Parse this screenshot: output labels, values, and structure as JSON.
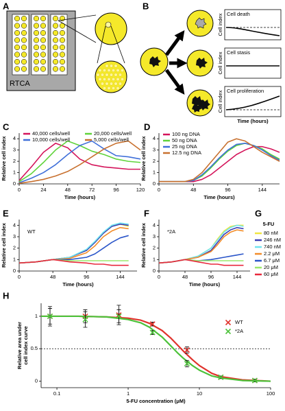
{
  "panel_labels": [
    "A",
    "B",
    "C",
    "D",
    "E",
    "F",
    "G",
    "H"
  ],
  "diagram": {
    "rtca_label": "RTCA",
    "outcomes": [
      {
        "label": "Cell death",
        "y_label": "Cell index"
      },
      {
        "label": "Cell stasis",
        "y_label": "Cell index"
      },
      {
        "label": "Cell proliferation",
        "y_label": "Cell index"
      }
    ],
    "x_label": "Time (hours)"
  },
  "chart_data": [
    {
      "type": "line",
      "xlabel": "Time (hours)",
      "ylabel": [
        "Relative cell index"
      ],
      "legend": "top",
      "x": [
        0,
        12,
        24,
        36,
        48,
        60,
        72,
        84,
        96,
        108,
        120
      ],
      "xlim": [
        0,
        120
      ],
      "xticks": [
        0,
        24,
        48,
        72,
        96,
        120
      ],
      "ylim": [
        0,
        4.5
      ],
      "yticks": [
        0,
        1,
        2,
        3,
        4
      ],
      "series": [
        {
          "name": "40,000 cells/well",
          "color": "#d4145a",
          "values": [
            0.3,
            1.5,
            2.8,
            3.6,
            3.2,
            2.2,
            1.7,
            1.5,
            1.4,
            1.3,
            1.3
          ]
        },
        {
          "name": "20,000 cells/well",
          "color": "#5fd33a",
          "values": [
            0.2,
            0.9,
            1.9,
            3.0,
            3.8,
            3.4,
            2.9,
            2.6,
            2.2,
            2.0,
            1.9
          ]
        },
        {
          "name": "10,000 cells/well",
          "color": "#3f6fd9",
          "values": [
            0.1,
            0.5,
            1.0,
            1.7,
            2.6,
            3.4,
            3.8,
            3.1,
            2.5,
            2.4,
            2.2
          ]
        },
        {
          "name": "5,000 cells/well",
          "color": "#c8702e",
          "values": [
            0.05,
            0.2,
            0.4,
            0.7,
            1.1,
            1.7,
            2.4,
            3.1,
            3.6,
            3.8,
            3.0
          ]
        }
      ]
    },
    {
      "type": "line",
      "xlabel": "Time (hours)",
      "ylabel": [
        "Relative cell index"
      ],
      "legend": "upper left",
      "x": [
        0,
        12,
        24,
        36,
        48,
        60,
        72,
        84,
        96,
        108,
        120,
        132,
        144,
        156,
        168
      ],
      "xlim": [
        0,
        168
      ],
      "xticks": [
        0,
        48,
        96,
        144
      ],
      "ylim": [
        0,
        4.5
      ],
      "yticks": [
        0,
        1,
        2,
        3,
        4
      ],
      "series": [
        {
          "name": "100 ng DNA",
          "color": "#d4145a",
          "values": [
            0.2,
            0.2,
            0.2,
            0.2,
            0.2,
            0.4,
            0.8,
            1.4,
            2.0,
            2.6,
            3.0,
            3.3,
            3.3,
            3.1,
            2.8
          ]
        },
        {
          "name": "50 ng DNA",
          "color": "#5fd33a",
          "values": [
            0.2,
            0.2,
            0.2,
            0.2,
            0.3,
            0.7,
            1.4,
            2.2,
            2.9,
            3.4,
            3.6,
            3.4,
            3.1,
            2.6,
            2.2
          ]
        },
        {
          "name": "25 ng DNA",
          "color": "#3f6fd9",
          "values": [
            0.2,
            0.2,
            0.2,
            0.2,
            0.3,
            0.8,
            1.5,
            2.3,
            3.0,
            3.5,
            3.6,
            3.4,
            3.0,
            2.5,
            2.1
          ]
        },
        {
          "name": "12.5 ng DNA",
          "color": "#c8702e",
          "values": [
            0.2,
            0.2,
            0.2,
            0.2,
            0.4,
            1.0,
            1.9,
            2.8,
            3.7,
            4.0,
            3.8,
            3.3,
            2.8,
            2.4,
            2.0
          ]
        }
      ]
    },
    {
      "type": "line",
      "xlabel": "Time (hours)",
      "ylabel": [
        "Relative cell index"
      ],
      "legend": "right",
      "legend_title": "5-FU",
      "annotation": "WT",
      "x": [
        0,
        24,
        48,
        72,
        96,
        108,
        120,
        132,
        144,
        156
      ],
      "xlim": [
        0,
        168
      ],
      "xticks": [
        0,
        48,
        96,
        144
      ],
      "ylim": [
        0,
        4.5
      ],
      "yticks": [
        0,
        1,
        2,
        3,
        4
      ],
      "series": [
        {
          "name": "80 nM",
          "color": "#f0e640",
          "values": [
            0.7,
            0.8,
            1.0,
            1.2,
            1.8,
            2.5,
            3.3,
            3.9,
            4.1,
            3.9
          ]
        },
        {
          "name": "246 nM",
          "color": "#3b3fb5",
          "values": [
            0.7,
            0.8,
            1.0,
            1.2,
            1.8,
            2.5,
            3.3,
            3.9,
            4.1,
            4.0
          ]
        },
        {
          "name": "740 nM",
          "color": "#6fe3f0",
          "values": [
            0.7,
            0.8,
            1.0,
            1.2,
            1.9,
            2.6,
            3.4,
            4.0,
            4.2,
            4.1
          ]
        },
        {
          "name": "2.2 μM",
          "color": "#f28c28",
          "values": [
            0.7,
            0.8,
            1.0,
            1.1,
            1.6,
            2.2,
            3.0,
            3.5,
            3.8,
            3.7
          ]
        },
        {
          "name": "6.7 μM",
          "color": "#2a55c9",
          "values": [
            0.7,
            0.8,
            1.0,
            1.0,
            1.2,
            1.5,
            2.0,
            2.5,
            2.9,
            3.1
          ]
        },
        {
          "name": "20 μM",
          "color": "#9be86b",
          "values": [
            0.7,
            0.8,
            1.0,
            0.9,
            0.9,
            0.9,
            0.9,
            0.9,
            0.9,
            0.9
          ]
        },
        {
          "name": "60 μM",
          "color": "#e8283c",
          "values": [
            0.7,
            0.8,
            1.0,
            0.8,
            0.7,
            0.6,
            0.6,
            0.5,
            0.5,
            0.5
          ]
        }
      ]
    },
    {
      "type": "line",
      "xlabel": "Time (hours)",
      "ylabel": [
        "Relative cell index"
      ],
      "annotation": "*2A",
      "x": [
        0,
        24,
        48,
        72,
        96,
        108,
        120,
        132,
        144,
        156
      ],
      "xlim": [
        0,
        168
      ],
      "xticks": [
        0,
        48,
        96,
        144
      ],
      "ylim": [
        0,
        4.5
      ],
      "yticks": [
        0,
        1,
        2,
        3,
        4
      ],
      "series": [
        {
          "color": "#f0e640",
          "values": [
            0.7,
            0.8,
            1.0,
            1.3,
            2.0,
            2.8,
            3.5,
            3.9,
            4.0,
            4.0
          ]
        },
        {
          "color": "#3b3fb5",
          "values": [
            0.7,
            0.8,
            1.0,
            1.2,
            1.8,
            2.5,
            3.2,
            3.6,
            3.8,
            3.7
          ]
        },
        {
          "color": "#6fe3f0",
          "values": [
            0.7,
            0.8,
            1.0,
            1.3,
            2.0,
            2.7,
            3.4,
            3.8,
            4.0,
            3.9
          ]
        },
        {
          "color": "#f28c28",
          "values": [
            0.7,
            0.8,
            1.0,
            1.2,
            1.7,
            2.3,
            3.0,
            3.4,
            3.6,
            3.5
          ]
        },
        {
          "color": "#2a55c9",
          "values": [
            0.7,
            0.8,
            1.0,
            0.9,
            1.0,
            1.1,
            1.2,
            1.3,
            1.4,
            1.5
          ]
        },
        {
          "color": "#9be86b",
          "values": [
            0.7,
            0.8,
            1.0,
            0.9,
            0.9,
            0.9,
            0.9,
            0.9,
            0.9,
            0.9
          ]
        },
        {
          "color": "#e8283c",
          "values": [
            0.7,
            0.8,
            1.0,
            0.8,
            0.6,
            0.6,
            0.5,
            0.5,
            0.5,
            0.5
          ]
        }
      ]
    },
    {
      "type": "scatter",
      "xlabel": "5-FU concentration (μM)",
      "ylabel": [
        "Relative area under",
        "cell index curve"
      ],
      "legend": "right",
      "xlog": true,
      "x": [
        0.08,
        0.25,
        0.74,
        2.2,
        6.7,
        20,
        60
      ],
      "xlim": [
        0.06,
        100
      ],
      "xticks": [
        0.1,
        1,
        10,
        100
      ],
      "ylim": [
        -0.1,
        1.2
      ],
      "yticks": [
        0,
        0.5,
        1
      ],
      "hline": 0.5,
      "fit_x": [
        0.06,
        0.2,
        0.5,
        1,
        1.5,
        2,
        3,
        4,
        5,
        6,
        8,
        10,
        15,
        20,
        40,
        100
      ],
      "series": [
        {
          "name": "WT",
          "color": "#e0332c",
          "values": [
            1.0,
            1.0,
            1.02,
            0.88,
            0.48,
            0.06,
            0.01
          ],
          "errors": [
            0.15,
            0.1,
            0.15,
            0.03,
            0.05,
            0.02,
            0.02
          ],
          "fit": [
            1.0,
            1.0,
            0.99,
            0.97,
            0.94,
            0.89,
            0.78,
            0.66,
            0.55,
            0.46,
            0.33,
            0.24,
            0.12,
            0.07,
            0.02,
            0.0
          ]
        },
        {
          "name": "*2A",
          "color": "#4cc23a",
          "values": [
            1.0,
            0.95,
            1.0,
            0.75,
            0.27,
            0.06,
            0.01
          ],
          "errors": [
            0.12,
            0.12,
            0.1,
            0.03,
            0.05,
            0.02,
            0.02
          ],
          "fit": [
            1.0,
            1.0,
            0.99,
            0.95,
            0.9,
            0.83,
            0.68,
            0.54,
            0.43,
            0.35,
            0.24,
            0.17,
            0.08,
            0.05,
            0.01,
            0.0
          ]
        }
      ]
    }
  ]
}
